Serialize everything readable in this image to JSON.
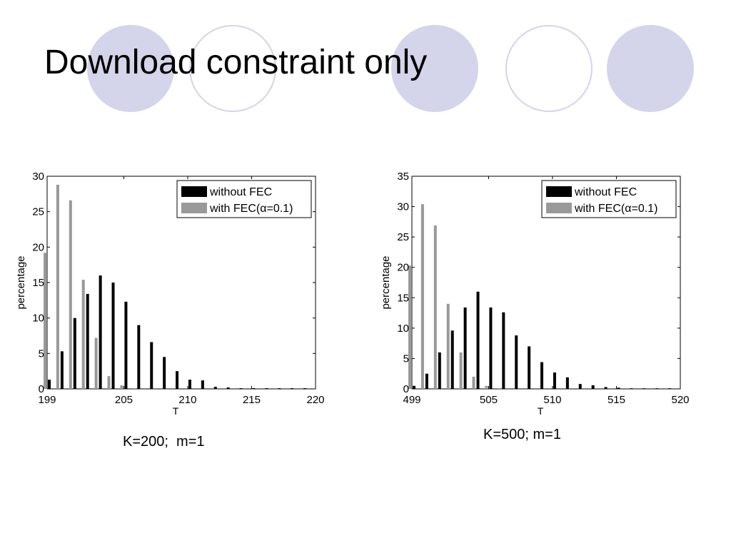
{
  "slide": {
    "title": "Download constraint only",
    "colors": {
      "decor": "#d4d4eb",
      "series_1": "#000000",
      "series_2": "#999999"
    }
  },
  "captions": [
    "K=200;  m=1",
    "K=500; m=1"
  ],
  "chart_data": [
    {
      "type": "bar",
      "title": "",
      "xlabel": "T",
      "ylabel": "percentage",
      "xlim": [
        199,
        220
      ],
      "ylim": [
        0,
        30
      ],
      "xticks": [
        199,
        205,
        210,
        215,
        220
      ],
      "yticks": [
        0,
        5,
        10,
        15,
        20,
        25,
        30
      ],
      "grid": false,
      "legend_position": "top-right",
      "x": [
        199,
        200,
        201,
        202,
        203,
        204,
        205,
        206,
        207,
        208,
        209,
        210,
        211,
        212,
        213,
        214,
        215,
        216,
        217,
        218,
        219
      ],
      "series": [
        {
          "name": "without FEC",
          "color": "#000000",
          "values": [
            1.3,
            5.3,
            10.0,
            13.4,
            16.0,
            15.0,
            12.3,
            9.0,
            6.6,
            4.5,
            2.5,
            1.3,
            1.2,
            0.3,
            0.2,
            0.1,
            0.1,
            0.1,
            0.1,
            0.1,
            0.1
          ]
        },
        {
          "name": "with FEC(α=0.1)",
          "color": "#999999",
          "values": [
            19.2,
            28.8,
            26.6,
            15.4,
            7.2,
            1.8,
            0.5,
            0.1,
            0,
            0,
            0,
            0,
            0,
            0,
            0,
            0,
            0,
            0,
            0,
            0,
            0
          ]
        }
      ]
    },
    {
      "type": "bar",
      "title": "",
      "xlabel": "T",
      "ylabel": "percentage",
      "xlim": [
        499,
        520
      ],
      "ylim": [
        0,
        35
      ],
      "xticks": [
        499,
        505,
        510,
        515,
        520
      ],
      "yticks": [
        0,
        5,
        10,
        15,
        20,
        25,
        30,
        35
      ],
      "grid": false,
      "legend_position": "top-right",
      "x": [
        499,
        500,
        501,
        502,
        503,
        504,
        505,
        506,
        507,
        508,
        509,
        510,
        511,
        512,
        513,
        514,
        515,
        516,
        517,
        518,
        519
      ],
      "series": [
        {
          "name": "without FEC",
          "color": "#000000",
          "values": [
            0.5,
            2.5,
            6.0,
            9.6,
            13.4,
            16.0,
            13.4,
            12.6,
            8.8,
            7.0,
            4.4,
            2.7,
            1.9,
            0.8,
            0.6,
            0.3,
            0.2,
            0.1,
            0.1,
            0.1,
            0.1
          ]
        },
        {
          "name": "with FEC(α=0.1)",
          "color": "#999999",
          "values": [
            20.3,
            30.4,
            26.9,
            14.0,
            6.0,
            2.0,
            0.5,
            0.1,
            0,
            0,
            0,
            0,
            0,
            0,
            0,
            0,
            0,
            0,
            0,
            0,
            0
          ]
        }
      ]
    }
  ]
}
